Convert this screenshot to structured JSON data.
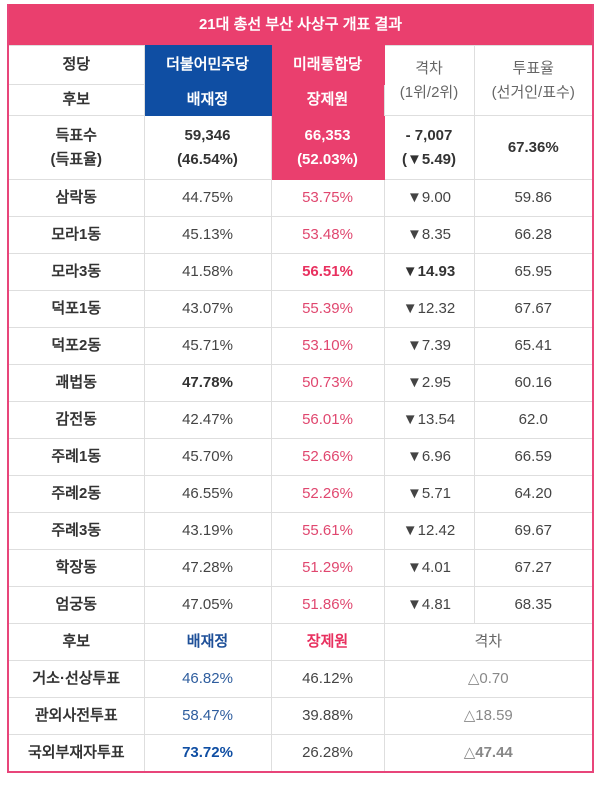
{
  "title": "21대 총선 부산 사상구 개표 결과",
  "header": {
    "party_label": "정당",
    "candidate_label": "후보",
    "party_a": "더불어민주당",
    "party_b": "미래통합당",
    "candidate_a": "배재정",
    "candidate_b": "장제원",
    "gap_label_1": "격차",
    "gap_label_2": "(1위/2위)",
    "turnout_label_1": "투표율",
    "turnout_label_2": "(선거인/표수)"
  },
  "totals": {
    "label_1": "득표수",
    "label_2": "(득표율)",
    "a_votes": "59,346",
    "a_pct": "(46.54%)",
    "b_votes": "66,353",
    "b_pct": "(52.03%)",
    "gap_votes": "- 7,007",
    "gap_pct": "(▼5.49)",
    "turnout": "67.36%"
  },
  "districts": [
    {
      "name": "삼락동",
      "a": "44.75%",
      "b": "53.75%",
      "gap": "▼9.00",
      "turnout": "59.86",
      "a_bold": false,
      "b_bold": false,
      "gap_bold": false
    },
    {
      "name": "모라1동",
      "a": "45.13%",
      "b": "53.48%",
      "gap": "▼8.35",
      "turnout": "66.28",
      "a_bold": false,
      "b_bold": false,
      "gap_bold": false
    },
    {
      "name": "모라3동",
      "a": "41.58%",
      "b": "56.51%",
      "gap": "▼14.93",
      "turnout": "65.95",
      "a_bold": false,
      "b_bold": true,
      "gap_bold": true
    },
    {
      "name": "덕포1동",
      "a": "43.07%",
      "b": "55.39%",
      "gap": "▼12.32",
      "turnout": "67.67",
      "a_bold": false,
      "b_bold": false,
      "gap_bold": false
    },
    {
      "name": "덕포2동",
      "a": "45.71%",
      "b": "53.10%",
      "gap": "▼7.39",
      "turnout": "65.41",
      "a_bold": false,
      "b_bold": false,
      "gap_bold": false
    },
    {
      "name": "괘법동",
      "a": "47.78%",
      "b": "50.73%",
      "gap": "▼2.95",
      "turnout": "60.16",
      "a_bold": true,
      "b_bold": false,
      "gap_bold": false
    },
    {
      "name": "감전동",
      "a": "42.47%",
      "b": "56.01%",
      "gap": "▼13.54",
      "turnout": "62.0",
      "a_bold": false,
      "b_bold": false,
      "gap_bold": false
    },
    {
      "name": "주례1동",
      "a": "45.70%",
      "b": "52.66%",
      "gap": "▼6.96",
      "turnout": "66.59",
      "a_bold": false,
      "b_bold": false,
      "gap_bold": false
    },
    {
      "name": "주례2동",
      "a": "46.55%",
      "b": "52.26%",
      "gap": "▼5.71",
      "turnout": "64.20",
      "a_bold": false,
      "b_bold": false,
      "gap_bold": false
    },
    {
      "name": "주례3동",
      "a": "43.19%",
      "b": "55.61%",
      "gap": "▼12.42",
      "turnout": "69.67",
      "a_bold": false,
      "b_bold": false,
      "gap_bold": false
    },
    {
      "name": "학장동",
      "a": "47.28%",
      "b": "51.29%",
      "gap": "▼4.01",
      "turnout": "67.27",
      "a_bold": false,
      "b_bold": false,
      "gap_bold": false
    },
    {
      "name": "엄궁동",
      "a": "47.05%",
      "b": "51.86%",
      "gap": "▼4.81",
      "turnout": "68.35",
      "a_bold": false,
      "b_bold": false,
      "gap_bold": false
    }
  ],
  "special": {
    "header": {
      "label": "후보",
      "a": "배재정",
      "b": "장제원",
      "gap": "격차"
    },
    "rows": [
      {
        "name": "거소·선상투표",
        "a": "46.82%",
        "b": "46.12%",
        "gap": "△0.70",
        "a_bold": false,
        "gap_bold": false
      },
      {
        "name": "관외사전투표",
        "a": "58.47%",
        "b": "39.88%",
        "gap": "△18.59",
        "a_bold": false,
        "gap_bold": false
      },
      {
        "name": "국외부재자투표",
        "a": "73.72%",
        "b": "26.28%",
        "gap": "△47.44",
        "a_bold": true,
        "gap_bold": true
      }
    ]
  },
  "colors": {
    "accent_pink": "#ea3f6e",
    "party_blue": "#0f4ea3",
    "border_gray": "#dedede"
  }
}
